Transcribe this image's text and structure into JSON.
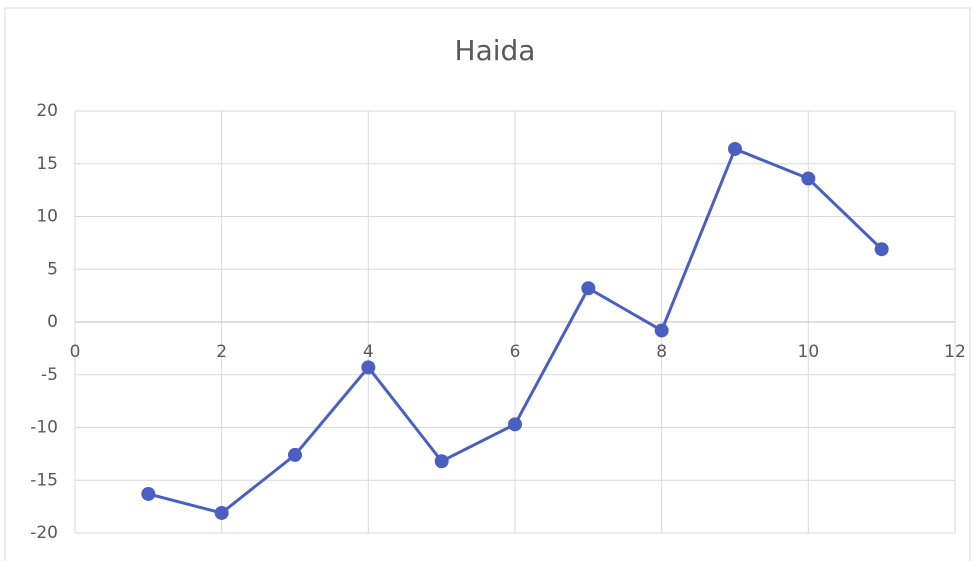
{
  "chart_data": {
    "type": "line",
    "title": "Haida",
    "x": [
      1,
      2,
      3,
      4,
      5,
      6,
      7,
      8,
      9,
      10,
      11
    ],
    "series": [
      {
        "name": "Haida",
        "color": "#4a5fc1",
        "values": [
          -16.3,
          -18.1,
          -12.6,
          -4.3,
          -13.2,
          -9.7,
          3.2,
          -0.8,
          16.4,
          13.6,
          6.9
        ]
      }
    ],
    "xlim": [
      0,
      12
    ],
    "xticks": [
      0,
      2,
      4,
      6,
      8,
      10,
      12
    ],
    "ylim": [
      -20,
      20
    ],
    "yticks": [
      -20,
      -15,
      -10,
      -5,
      0,
      5,
      10,
      15,
      20
    ],
    "grid": true
  }
}
